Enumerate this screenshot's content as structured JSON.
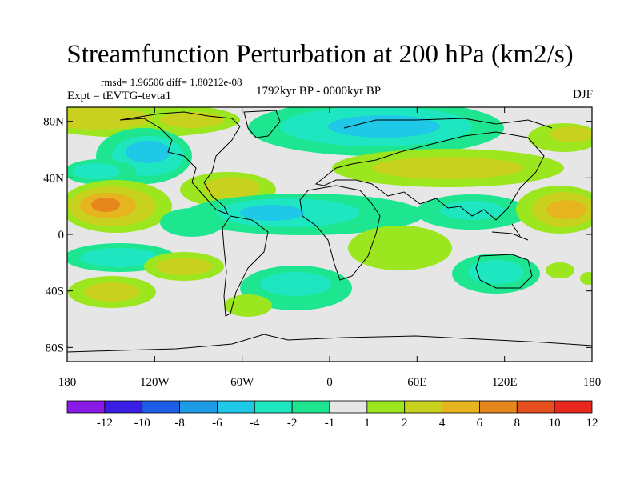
{
  "title": "Streamfunction Perturbation at 200 hPa (km2/s)",
  "stats": "rmsd= 1.96506 diff= 1.80212e-08",
  "experiment": "Expt = tEVTG-tevta1",
  "period": "1792kyr BP - 0000kyr BP",
  "season": "DJF",
  "map": {
    "lat_labels": [
      "80N",
      "40N",
      "0",
      "40S",
      "80S"
    ],
    "lat_values": [
      80,
      40,
      0,
      -40,
      -80
    ],
    "lon_labels": [
      "180",
      "120W",
      "60W",
      "0",
      "60E",
      "120E",
      "180"
    ],
    "lon_values": [
      -180,
      -120,
      -60,
      0,
      60,
      120,
      180
    ],
    "background_color": "#e6e6e6"
  },
  "colorbar": {
    "labels": [
      "-12",
      "-10",
      "-8",
      "-6",
      "-4",
      "-2",
      "-1",
      "1",
      "2",
      "4",
      "6",
      "8",
      "10",
      "12"
    ],
    "colors": [
      "#8a1be6",
      "#3b1ee6",
      "#1e5ee6",
      "#1e9be6",
      "#1ec8e6",
      "#1ee6c0",
      "#1ee690",
      "#e6e6e6",
      "#9be61e",
      "#c8d21e",
      "#e6b41e",
      "#e6871e",
      "#e6501e",
      "#e6281e"
    ]
  }
}
